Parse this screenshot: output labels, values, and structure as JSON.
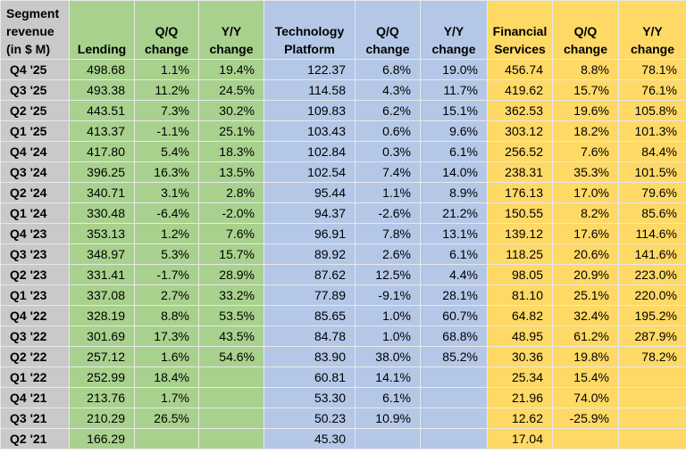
{
  "table": {
    "header": [
      "Segment revenue (in $ M)",
      "Lending",
      "Q/Q change",
      "Y/Y change",
      "Technology Platform",
      "Q/Q change",
      "Y/Y change",
      "Financial Services",
      "Q/Q change",
      "Y/Y change"
    ],
    "rows": [
      [
        "Q4 '25",
        "498.68",
        "1.1%",
        "19.4%",
        "122.37",
        "6.8%",
        "19.0%",
        "456.74",
        "8.8%",
        "78.1%"
      ],
      [
        "Q3 '25",
        "493.38",
        "11.2%",
        "24.5%",
        "114.58",
        "4.3%",
        "11.7%",
        "419.62",
        "15.7%",
        "76.1%"
      ],
      [
        "Q2 '25",
        "443.51",
        "7.3%",
        "30.2%",
        "109.83",
        "6.2%",
        "15.1%",
        "362.53",
        "19.6%",
        "105.8%"
      ],
      [
        "Q1 '25",
        "413.37",
        "-1.1%",
        "25.1%",
        "103.43",
        "0.6%",
        "9.6%",
        "303.12",
        "18.2%",
        "101.3%"
      ],
      [
        "Q4 '24",
        "417.80",
        "5.4%",
        "18.3%",
        "102.84",
        "0.3%",
        "6.1%",
        "256.52",
        "7.6%",
        "84.4%"
      ],
      [
        "Q3 '24",
        "396.25",
        "16.3%",
        "13.5%",
        "102.54",
        "7.4%",
        "14.0%",
        "238.31",
        "35.3%",
        "101.5%"
      ],
      [
        "Q2 '24",
        "340.71",
        "3.1%",
        "2.8%",
        "95.44",
        "1.1%",
        "8.9%",
        "176.13",
        "17.0%",
        "79.6%"
      ],
      [
        "Q1 '24",
        "330.48",
        "-6.4%",
        "-2.0%",
        "94.37",
        "-2.6%",
        "21.2%",
        "150.55",
        "8.2%",
        "85.6%"
      ],
      [
        "Q4 '23",
        "353.13",
        "1.2%",
        "7.6%",
        "96.91",
        "7.8%",
        "13.1%",
        "139.12",
        "17.6%",
        "114.6%"
      ],
      [
        "Q3 '23",
        "348.97",
        "5.3%",
        "15.7%",
        "89.92",
        "2.6%",
        "6.1%",
        "118.25",
        "20.6%",
        "141.6%"
      ],
      [
        "Q2 '23",
        "331.41",
        "-1.7%",
        "28.9%",
        "87.62",
        "12.5%",
        "4.4%",
        "98.05",
        "20.9%",
        "223.0%"
      ],
      [
        "Q1 '23",
        "337.08",
        "2.7%",
        "33.2%",
        "77.89",
        "-9.1%",
        "28.1%",
        "81.10",
        "25.1%",
        "220.0%"
      ],
      [
        "Q4 '22",
        "328.19",
        "8.8%",
        "53.5%",
        "85.65",
        "1.0%",
        "60.7%",
        "64.82",
        "32.4%",
        "195.2%"
      ],
      [
        "Q3 '22",
        "301.69",
        "17.3%",
        "43.5%",
        "84.78",
        "1.0%",
        "68.8%",
        "48.95",
        "61.2%",
        "287.9%"
      ],
      [
        "Q2 '22",
        "257.12",
        "1.6%",
        "54.6%",
        "83.90",
        "38.0%",
        "85.2%",
        "30.36",
        "19.8%",
        "78.2%"
      ],
      [
        "Q1 '22",
        "252.99",
        "18.4%",
        null,
        "60.81",
        "14.1%",
        null,
        "25.34",
        "15.4%",
        null
      ],
      [
        "Q4 '21",
        "213.76",
        "1.7%",
        null,
        "53.30",
        "6.1%",
        null,
        "21.96",
        "74.0%",
        null
      ],
      [
        "Q3 '21",
        "210.29",
        "26.5%",
        null,
        "50.23",
        "10.9%",
        null,
        "12.62",
        "-25.9%",
        null
      ],
      [
        "Q2 '21",
        "166.29",
        null,
        null,
        "45.30",
        null,
        null,
        "17.04",
        null,
        null
      ]
    ]
  }
}
